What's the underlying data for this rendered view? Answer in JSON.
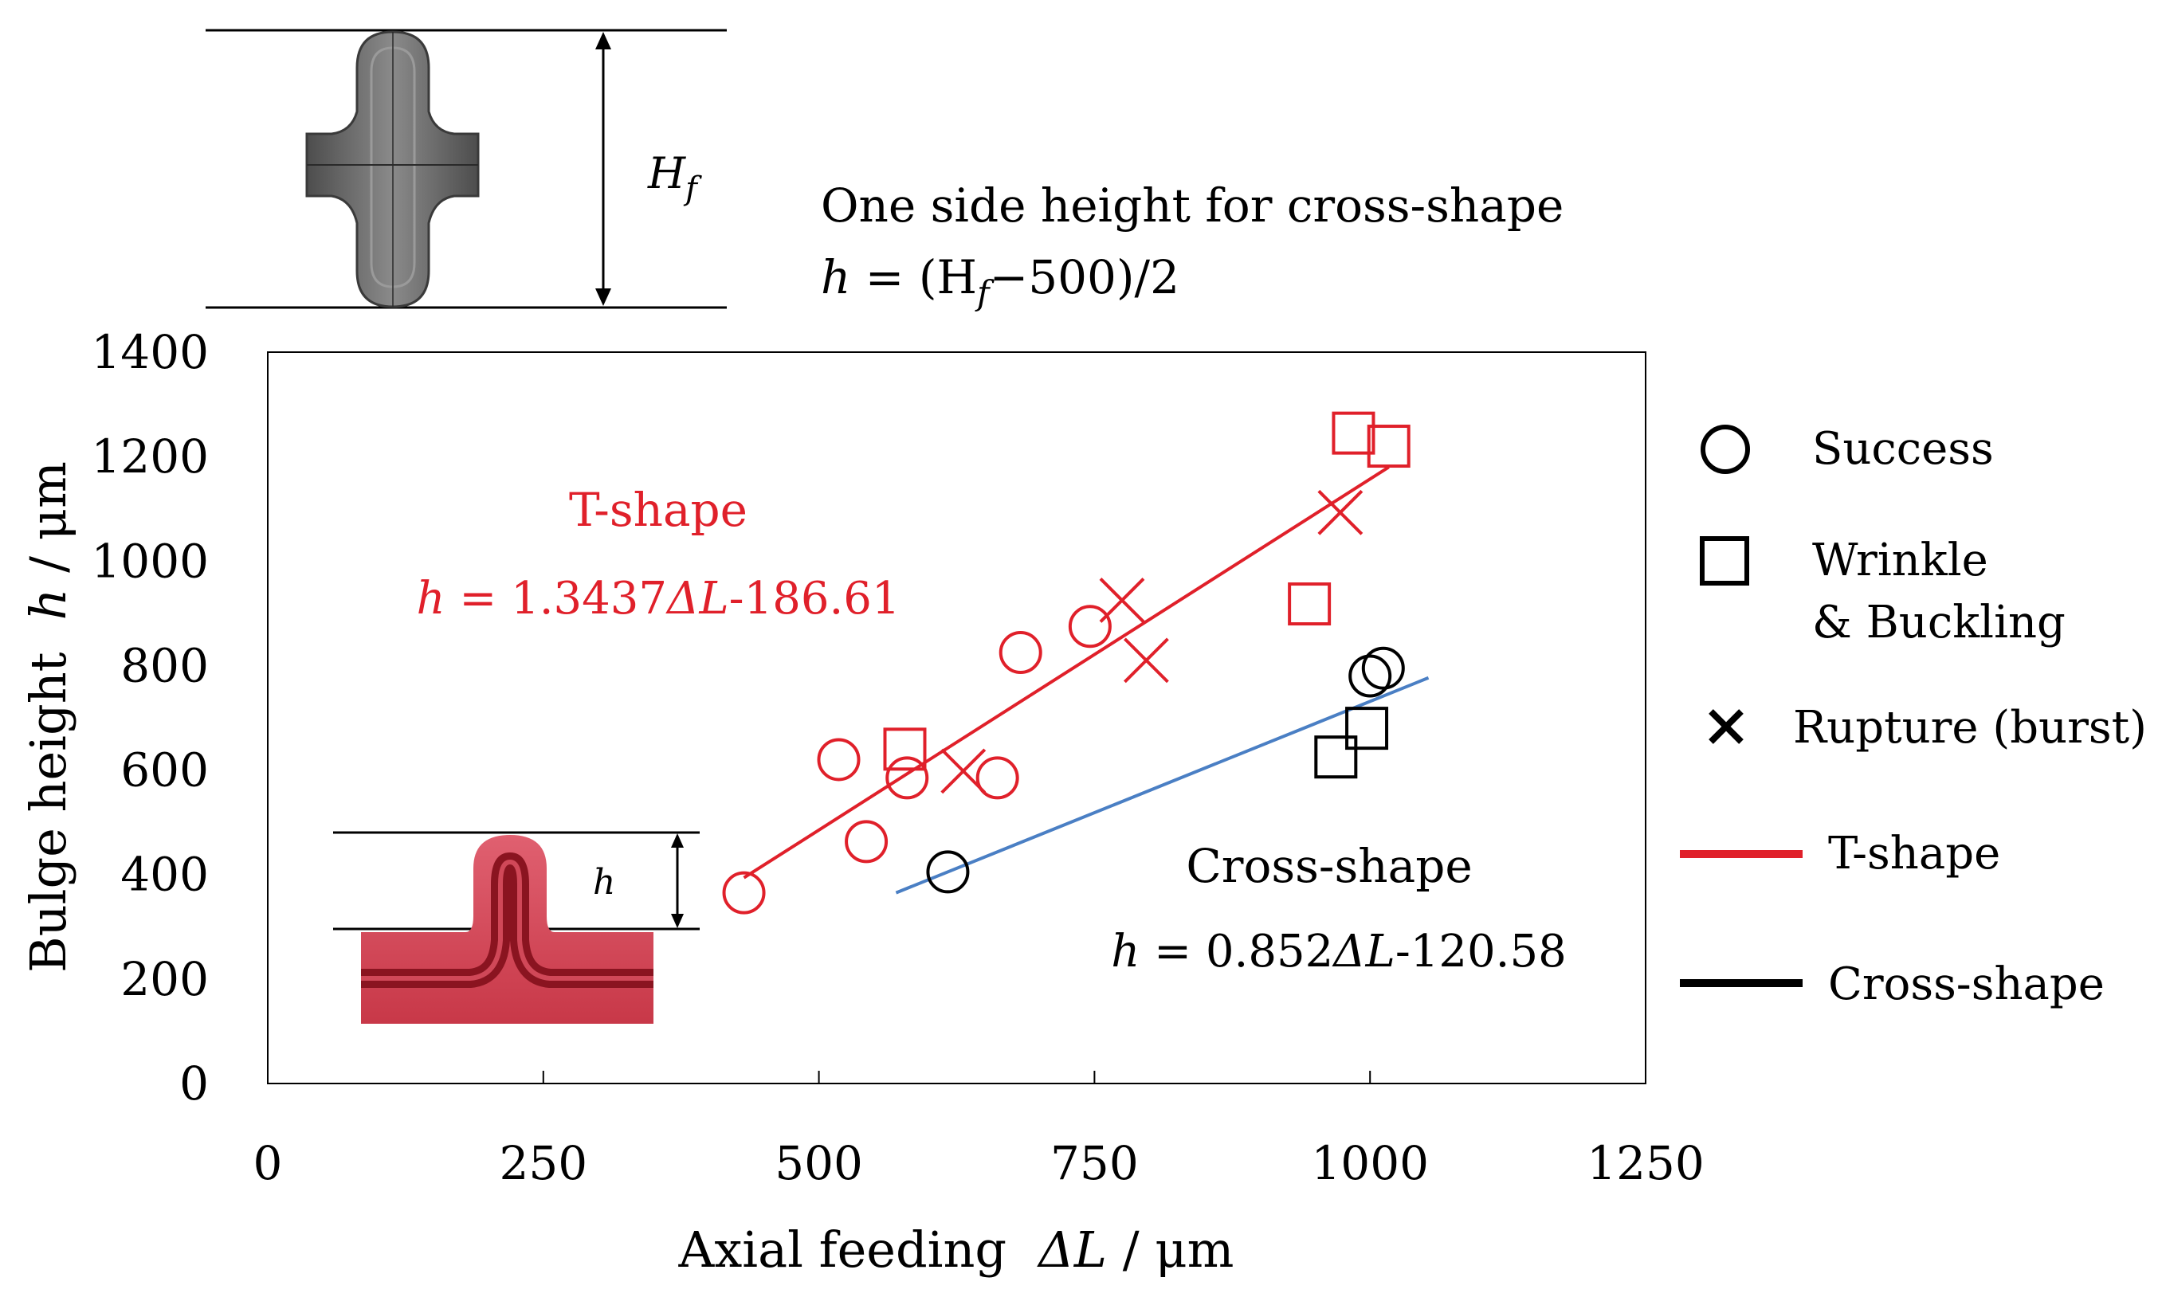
{
  "header": {
    "formula_title": "One side height for cross-shape",
    "formula_lhs": "h",
    "formula_rhs_open": " = (H",
    "formula_sub": "f",
    "formula_rhs_close": "−500)/2",
    "hf_label": "H",
    "hf_sub": "f"
  },
  "inset": {
    "h_label": "h"
  },
  "colors": {
    "t_shape": "#e0202a",
    "cross_marker": "#000000",
    "cross_line": "#4a7fc4",
    "inset_fill": "#d84a5a",
    "inset_dark": "#8a1420",
    "top_shape": "#6b6b6b"
  },
  "chart_data": {
    "type": "scatter",
    "title": "",
    "xlabel_prefix": "Axial feeding",
    "xlabel_var": "ΔL",
    "xlabel_unit": " / μm",
    "ylabel_prefix": "Bulge height",
    "ylabel_var": "h",
    "ylabel_unit": " / μm",
    "xlim": [
      0,
      1250
    ],
    "ylim": [
      0,
      1400
    ],
    "xticks": [
      0,
      250,
      500,
      750,
      1000,
      1250
    ],
    "yticks": [
      0,
      200,
      400,
      600,
      800,
      1000,
      1200,
      1400
    ],
    "series": [
      {
        "name": "T-shape",
        "color": "t_shape",
        "points": [
          {
            "x": 432,
            "y": 365,
            "marker": "circle"
          },
          {
            "x": 518,
            "y": 620,
            "marker": "circle"
          },
          {
            "x": 543,
            "y": 463,
            "marker": "circle"
          },
          {
            "x": 580,
            "y": 585,
            "marker": "circle"
          },
          {
            "x": 662,
            "y": 585,
            "marker": "circle"
          },
          {
            "x": 683,
            "y": 825,
            "marker": "circle"
          },
          {
            "x": 746,
            "y": 875,
            "marker": "circle"
          },
          {
            "x": 578,
            "y": 640,
            "marker": "square"
          },
          {
            "x": 945,
            "y": 918,
            "marker": "square"
          },
          {
            "x": 985,
            "y": 1245,
            "marker": "square"
          },
          {
            "x": 1017,
            "y": 1220,
            "marker": "square"
          },
          {
            "x": 631,
            "y": 598,
            "marker": "cross"
          },
          {
            "x": 775,
            "y": 925,
            "marker": "cross"
          },
          {
            "x": 797,
            "y": 810,
            "marker": "cross"
          },
          {
            "x": 973,
            "y": 1093,
            "marker": "cross"
          }
        ],
        "fit": {
          "slope": 1.3437,
          "intercept": -186.61,
          "x_range": [
            432,
            1017
          ]
        }
      },
      {
        "name": "Cross-shape",
        "color": "cross_marker",
        "points": [
          {
            "x": 617,
            "y": 405,
            "marker": "circle"
          },
          {
            "x": 1000,
            "y": 780,
            "marker": "circle"
          },
          {
            "x": 1012,
            "y": 795,
            "marker": "circle"
          },
          {
            "x": 969,
            "y": 625,
            "marker": "square"
          },
          {
            "x": 997,
            "y": 680,
            "marker": "square"
          }
        ],
        "fit": {
          "slope": 0.852,
          "intercept": -120.58,
          "x_range": [
            570,
            1053
          ]
        }
      }
    ],
    "annotations": {
      "t_name": "T-shape",
      "t_eq_lhs": "h",
      "t_eq_mid": " = 1.3437",
      "t_eq_var": "ΔL",
      "t_eq_end": "-186.61",
      "c_name": "Cross-shape",
      "c_eq_lhs": "h",
      "c_eq_mid": " = 0.852",
      "c_eq_var": "ΔL",
      "c_eq_end": "-120.58"
    },
    "legend": {
      "position": "right",
      "items": [
        {
          "label": "Success",
          "marker": "circle"
        },
        {
          "label": "Wrinkle",
          "label2": "& Buckling",
          "marker": "square"
        },
        {
          "label": "Rupture (burst)",
          "marker": "cross"
        },
        {
          "label": "T-shape",
          "line": "t_shape"
        },
        {
          "label": "Cross-shape",
          "line": "cross_marker"
        }
      ]
    }
  }
}
